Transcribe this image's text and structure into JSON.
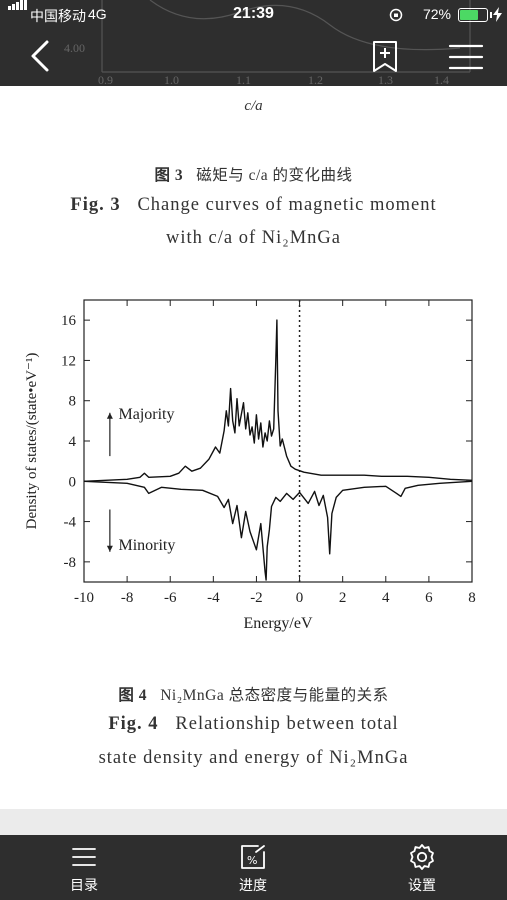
{
  "status_bar": {
    "carrier": "中国移动",
    "network": "4G",
    "time": "21:39",
    "battery_percent_label": "72%",
    "battery_level": 0.72,
    "accent_color": "#4cd964"
  },
  "top_peek": {
    "tick_y": "4.00",
    "tick_x": [
      "0.9",
      "1.0",
      "1.1",
      "1.2",
      "1.3",
      "1.4"
    ],
    "axis_label": "c/a"
  },
  "nav": {
    "back_icon": "chevron-left-icon",
    "bookmark_icon": "bookmark-add-icon",
    "menu_icon": "hamburger-menu-icon"
  },
  "figure3": {
    "caption_cn_num": "图 3",
    "caption_cn_text": "磁矩与 c/a 的变化曲线",
    "caption_en_num": "Fig. 3",
    "caption_en_line1": "Change curves of magnetic moment",
    "caption_en_line2": "with c/a of Ni₂MnGa"
  },
  "figure4": {
    "caption_cn_num": "图 4",
    "caption_cn_text": "Ni₂MnGa 总态密度与能量的关系",
    "caption_en_num": "Fig. 4",
    "caption_en_line1": "Relationship between total",
    "caption_en_line2": "state density and energy of Ni₂MnGa"
  },
  "chart_data": {
    "type": "line",
    "title": "",
    "xlabel": "Energy/eV",
    "ylabel": "Density of states/(state•eV⁻¹)",
    "xlim": [
      -10,
      8
    ],
    "ylim": [
      -10,
      18
    ],
    "x_ticks": [
      -10,
      -8,
      -6,
      -4,
      -2,
      0,
      2,
      4,
      6,
      8
    ],
    "y_ticks": [
      -8,
      -4,
      0,
      4,
      8,
      12,
      16
    ],
    "x_tick_labels": [
      "-10",
      "-8",
      "-6",
      "-4",
      "-2",
      "0",
      "2",
      "4",
      "6",
      "8"
    ],
    "y_tick_labels": [
      "-8",
      "-4",
      "0",
      "4",
      "8",
      "12",
      "16"
    ],
    "fermi_level_x": 0,
    "annotations": [
      "Majority",
      "Minority"
    ],
    "series": [
      {
        "name": "Majority",
        "x": [
          -10,
          -8,
          -7.4,
          -7.2,
          -7.0,
          -6,
          -5.6,
          -5.3,
          -5.0,
          -4.6,
          -4.2,
          -3.9,
          -3.7,
          -3.5,
          -3.4,
          -3.3,
          -3.2,
          -3.1,
          -3.0,
          -2.9,
          -2.8,
          -2.6,
          -2.5,
          -2.4,
          -2.3,
          -2.2,
          -2.1,
          -2.0,
          -1.9,
          -1.8,
          -1.7,
          -1.6,
          -1.5,
          -1.4,
          -1.3,
          -1.2,
          -1.1,
          -1.05,
          -1.0,
          -0.9,
          -0.8,
          -0.6,
          -0.4,
          -0.2,
          0.2,
          1,
          2,
          3,
          3.8,
          4.1,
          4.4,
          5,
          6,
          7,
          8
        ],
        "y": [
          0,
          0.2,
          0.4,
          0.8,
          0.4,
          0.5,
          0.8,
          1.5,
          1.0,
          1.3,
          2.2,
          3.4,
          2.8,
          5.0,
          7.0,
          5.5,
          9.2,
          6.0,
          4.8,
          8.2,
          5.5,
          7.8,
          5.2,
          6.8,
          4.6,
          5.4,
          3.8,
          6.6,
          4.2,
          5.8,
          3.4,
          4.8,
          4.0,
          6.0,
          4.5,
          5.2,
          12.0,
          16.0,
          7.0,
          3.5,
          4.2,
          2.5,
          1.5,
          1.2,
          0.9,
          0.6,
          0.6,
          0.6,
          0.5,
          0.5,
          0.5,
          0.5,
          0.4,
          0.2,
          0.1
        ]
      },
      {
        "name": "Minority",
        "x": [
          -10,
          -8,
          -7.2,
          -7.0,
          -6.4,
          -5.5,
          -4.5,
          -3.8,
          -3.5,
          -3.3,
          -3.1,
          -2.9,
          -2.7,
          -2.5,
          -2.3,
          -2.0,
          -1.8,
          -1.6,
          -1.55,
          -1.5,
          -1.4,
          -1.3,
          -1.1,
          -0.9,
          -0.6,
          -0.3,
          0,
          0.4,
          0.7,
          0.9,
          1.1,
          1.3,
          1.4,
          1.5,
          1.7,
          2.0,
          3.0,
          4.0,
          4.5,
          4.7,
          4.9,
          5.5,
          6.5,
          8
        ],
        "y": [
          0,
          -0.2,
          -0.6,
          -1.2,
          -0.6,
          -0.8,
          -0.9,
          -1.5,
          -2.6,
          -1.8,
          -4.2,
          -2.4,
          -5.6,
          -3.0,
          -5.0,
          -6.8,
          -4.2,
          -9.0,
          -9.8,
          -6.5,
          -4.8,
          -2.5,
          -1.6,
          -2.0,
          -1.2,
          -1.8,
          -1.1,
          -2.2,
          -1.0,
          -2.4,
          -1.4,
          -3.6,
          -7.2,
          -3.2,
          -1.6,
          -0.9,
          -0.6,
          -0.5,
          -1.2,
          -1.5,
          -0.7,
          -0.4,
          -0.2,
          0
        ]
      }
    ]
  },
  "tabbar": {
    "items": [
      {
        "label": "目录",
        "icon": "list-icon"
      },
      {
        "label": "进度",
        "icon": "progress-icon"
      },
      {
        "label": "设置",
        "icon": "gear-icon"
      }
    ]
  }
}
